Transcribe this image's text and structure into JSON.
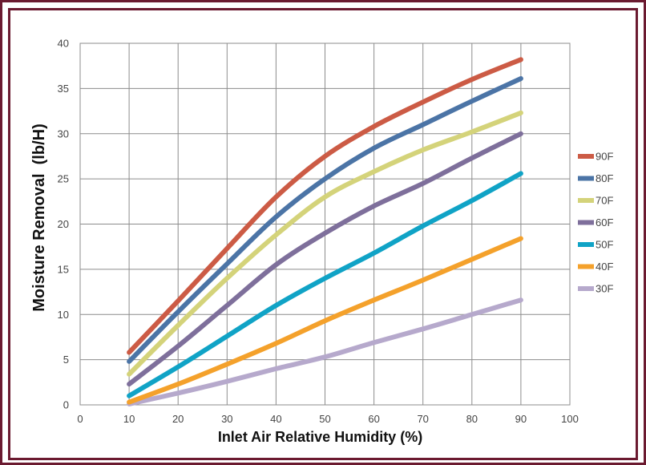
{
  "chart_data": {
    "type": "line",
    "title": "",
    "xlabel": "Inlet Air Relative Humidity (%)",
    "ylabel": "Moisture Removal  (lb/H)",
    "xlim": [
      0,
      100
    ],
    "ylim": [
      0,
      40
    ],
    "xticks": [
      0,
      10,
      20,
      30,
      40,
      50,
      60,
      70,
      80,
      90,
      100
    ],
    "yticks": [
      0,
      5,
      10,
      15,
      20,
      25,
      30,
      35,
      40
    ],
    "grid": true,
    "legend_position": "right",
    "x": [
      10,
      20,
      30,
      40,
      50,
      60,
      70,
      80,
      90
    ],
    "series": [
      {
        "name": "90F",
        "color": "#cc5b45",
        "values": [
          5.8,
          11.5,
          17.3,
          23.0,
          27.5,
          30.8,
          33.5,
          36.0,
          38.2
        ]
      },
      {
        "name": "80F",
        "color": "#4b74a6",
        "values": [
          4.8,
          10.3,
          15.6,
          20.8,
          25.0,
          28.4,
          31.0,
          33.6,
          36.1
        ]
      },
      {
        "name": "70F",
        "color": "#d4d37a",
        "values": [
          3.4,
          8.8,
          14.0,
          18.8,
          23.0,
          25.8,
          28.2,
          30.2,
          32.3
        ]
      },
      {
        "name": "60F",
        "color": "#7e6f9b",
        "values": [
          2.3,
          6.5,
          11.0,
          15.5,
          19.0,
          22.0,
          24.5,
          27.3,
          30.0
        ]
      },
      {
        "name": "50F",
        "color": "#10a3c6",
        "values": [
          1.0,
          4.2,
          7.6,
          11.0,
          14.0,
          16.8,
          19.8,
          22.6,
          25.6
        ]
      },
      {
        "name": "40F",
        "color": "#f4a12b",
        "values": [
          0.3,
          2.3,
          4.5,
          6.8,
          9.3,
          11.6,
          13.8,
          16.1,
          18.4
        ]
      },
      {
        "name": "30F",
        "color": "#b6a9cc",
        "values": [
          0.1,
          1.3,
          2.6,
          4.0,
          5.3,
          6.9,
          8.4,
          10.0,
          11.6
        ]
      }
    ]
  }
}
